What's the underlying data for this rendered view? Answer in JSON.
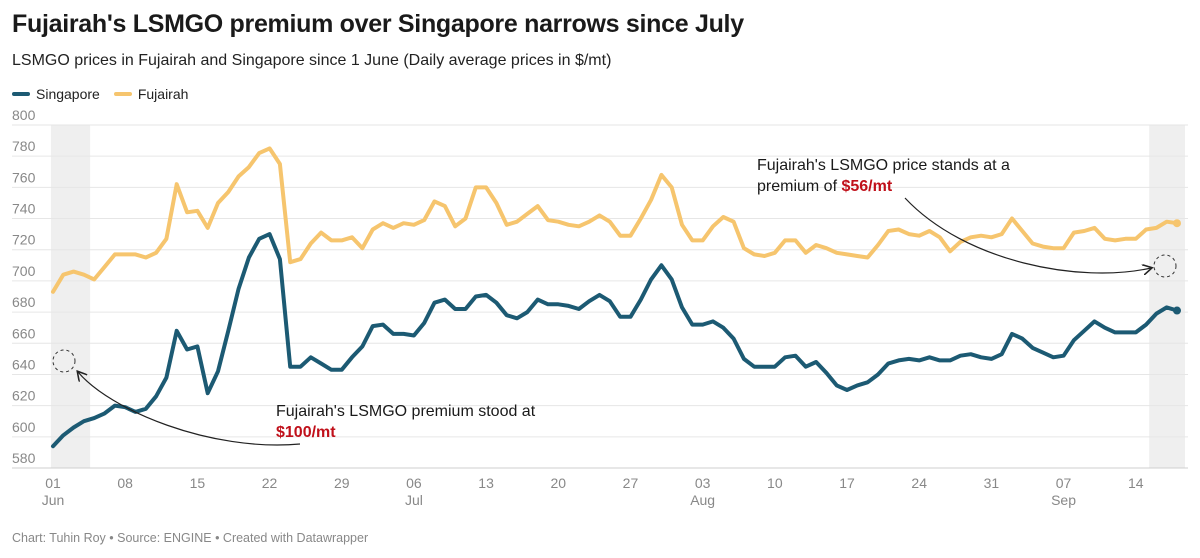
{
  "title": "Fujairah's LSMGO premium over Singapore narrows since July",
  "subtitle": "LSMGO prices in Fujairah and Singapore since 1 June (Daily average prices in $/mt)",
  "footer": "Chart: Tuhin Roy • Source: ENGINE • Created with Datawrapper",
  "annotations": {
    "start_text": "Fujairah's LSMGO premium stood at",
    "start_value": "$100/mt",
    "end_text_1": "Fujairah's LSMGO price stands at a",
    "end_text_2": "premium of ",
    "end_value": "$56/mt"
  },
  "colors": {
    "singapore": "#1c5a73",
    "fujairah": "#f6c56e",
    "highlight": "#c0101a",
    "shade": "#efefef",
    "grid": "#e6e6e6"
  },
  "chart_data": {
    "type": "line",
    "ylim": [
      580,
      800
    ],
    "y_ticks": [
      580,
      600,
      620,
      640,
      660,
      680,
      700,
      720,
      740,
      760,
      780,
      800
    ],
    "x_ticks": [
      {
        "day": 0,
        "label": "01",
        "month": "Jun"
      },
      {
        "day": 7,
        "label": "08",
        "month": ""
      },
      {
        "day": 14,
        "label": "15",
        "month": ""
      },
      {
        "day": 21,
        "label": "22",
        "month": ""
      },
      {
        "day": 28,
        "label": "29",
        "month": ""
      },
      {
        "day": 35,
        "label": "06",
        "month": "Jul"
      },
      {
        "day": 42,
        "label": "13",
        "month": ""
      },
      {
        "day": 49,
        "label": "20",
        "month": ""
      },
      {
        "day": 56,
        "label": "27",
        "month": ""
      },
      {
        "day": 63,
        "label": "03",
        "month": "Aug"
      },
      {
        "day": 70,
        "label": "10",
        "month": ""
      },
      {
        "day": 77,
        "label": "17",
        "month": ""
      },
      {
        "day": 84,
        "label": "24",
        "month": ""
      },
      {
        "day": 91,
        "label": "31",
        "month": ""
      },
      {
        "day": 98,
        "label": "07",
        "month": "Sep"
      },
      {
        "day": 105,
        "label": "14",
        "month": ""
      }
    ],
    "x_range": [
      0,
      109
    ],
    "series": [
      {
        "name": "Singapore",
        "points": [
          [
            0,
            594
          ],
          [
            1,
            601
          ],
          [
            2,
            606
          ],
          [
            3,
            610
          ],
          [
            4,
            612
          ],
          [
            5,
            615
          ],
          [
            6,
            620
          ],
          [
            7,
            619
          ],
          [
            8,
            616
          ],
          [
            9,
            618
          ],
          [
            10,
            626
          ],
          [
            11,
            638
          ],
          [
            12,
            668
          ],
          [
            13,
            656
          ],
          [
            14,
            658
          ],
          [
            15,
            628
          ],
          [
            16,
            642
          ],
          [
            17,
            668
          ],
          [
            18,
            695
          ],
          [
            19,
            715
          ],
          [
            20,
            727
          ],
          [
            21,
            730
          ],
          [
            22,
            714
          ],
          [
            23,
            645
          ],
          [
            24,
            645
          ],
          [
            25,
            651
          ],
          [
            26,
            647
          ],
          [
            27,
            643
          ],
          [
            28,
            643
          ],
          [
            29,
            651
          ],
          [
            30,
            658
          ],
          [
            31,
            671
          ],
          [
            32,
            672
          ],
          [
            33,
            666
          ],
          [
            34,
            666
          ],
          [
            35,
            665
          ],
          [
            36,
            673
          ],
          [
            37,
            686
          ],
          [
            38,
            688
          ],
          [
            39,
            682
          ],
          [
            40,
            682
          ],
          [
            41,
            690
          ],
          [
            42,
            691
          ],
          [
            43,
            686
          ],
          [
            44,
            678
          ],
          [
            45,
            676
          ],
          [
            46,
            680
          ],
          [
            47,
            688
          ],
          [
            48,
            685
          ],
          [
            49,
            685
          ],
          [
            50,
            684
          ],
          [
            51,
            682
          ],
          [
            52,
            687
          ],
          [
            53,
            691
          ],
          [
            54,
            687
          ],
          [
            55,
            677
          ],
          [
            56,
            677
          ],
          [
            57,
            688
          ],
          [
            58,
            701
          ],
          [
            59,
            710
          ],
          [
            60,
            701
          ],
          [
            61,
            683
          ],
          [
            62,
            672
          ],
          [
            63,
            672
          ],
          [
            64,
            674
          ],
          [
            65,
            670
          ],
          [
            66,
            663
          ],
          [
            67,
            650
          ],
          [
            68,
            645
          ],
          [
            69,
            645
          ],
          [
            70,
            645
          ],
          [
            71,
            651
          ],
          [
            72,
            652
          ],
          [
            73,
            645
          ],
          [
            74,
            648
          ],
          [
            75,
            641
          ],
          [
            76,
            633
          ],
          [
            77,
            630
          ],
          [
            78,
            633
          ],
          [
            79,
            635
          ],
          [
            80,
            640
          ],
          [
            81,
            647
          ],
          [
            82,
            649
          ],
          [
            83,
            650
          ],
          [
            84,
            649
          ],
          [
            85,
            651
          ],
          [
            86,
            649
          ],
          [
            87,
            649
          ],
          [
            88,
            652
          ],
          [
            89,
            653
          ],
          [
            90,
            651
          ],
          [
            91,
            650
          ],
          [
            92,
            653
          ],
          [
            93,
            666
          ],
          [
            94,
            663
          ],
          [
            95,
            657
          ],
          [
            96,
            654
          ],
          [
            97,
            651
          ],
          [
            98,
            652
          ],
          [
            99,
            662
          ],
          [
            100,
            668
          ],
          [
            101,
            674
          ],
          [
            102,
            670
          ],
          [
            103,
            667
          ],
          [
            104,
            667
          ],
          [
            105,
            667
          ],
          [
            106,
            672
          ],
          [
            107,
            679
          ],
          [
            108,
            683
          ],
          [
            109,
            681
          ]
        ]
      },
      {
        "name": "Fujairah",
        "points": [
          [
            0,
            693
          ],
          [
            1,
            704
          ],
          [
            2,
            706
          ],
          [
            3,
            704
          ],
          [
            4,
            701
          ],
          [
            5,
            709
          ],
          [
            6,
            717
          ],
          [
            7,
            717
          ],
          [
            8,
            717
          ],
          [
            9,
            715
          ],
          [
            10,
            718
          ],
          [
            11,
            727
          ],
          [
            12,
            762
          ],
          [
            13,
            744
          ],
          [
            14,
            745
          ],
          [
            15,
            734
          ],
          [
            16,
            750
          ],
          [
            17,
            757
          ],
          [
            18,
            767
          ],
          [
            19,
            773
          ],
          [
            20,
            782
          ],
          [
            21,
            785
          ],
          [
            22,
            775
          ],
          [
            23,
            712
          ],
          [
            24,
            714
          ],
          [
            25,
            724
          ],
          [
            26,
            731
          ],
          [
            27,
            726
          ],
          [
            28,
            726
          ],
          [
            29,
            728
          ],
          [
            30,
            721
          ],
          [
            31,
            733
          ],
          [
            32,
            737
          ],
          [
            33,
            734
          ],
          [
            34,
            737
          ],
          [
            35,
            736
          ],
          [
            36,
            739
          ],
          [
            37,
            751
          ],
          [
            38,
            748
          ],
          [
            39,
            735
          ],
          [
            40,
            740
          ],
          [
            41,
            760
          ],
          [
            42,
            760
          ],
          [
            43,
            750
          ],
          [
            44,
            736
          ],
          [
            45,
            738
          ],
          [
            46,
            743
          ],
          [
            47,
            748
          ],
          [
            48,
            739
          ],
          [
            49,
            738
          ],
          [
            50,
            736
          ],
          [
            51,
            735
          ],
          [
            52,
            738
          ],
          [
            53,
            742
          ],
          [
            54,
            738
          ],
          [
            55,
            729
          ],
          [
            56,
            729
          ],
          [
            57,
            740
          ],
          [
            58,
            752
          ],
          [
            59,
            768
          ],
          [
            60,
            760
          ],
          [
            61,
            736
          ],
          [
            62,
            726
          ],
          [
            63,
            726
          ],
          [
            64,
            735
          ],
          [
            65,
            741
          ],
          [
            66,
            738
          ],
          [
            67,
            721
          ],
          [
            68,
            717
          ],
          [
            69,
            716
          ],
          [
            70,
            718
          ],
          [
            71,
            726
          ],
          [
            72,
            726
          ],
          [
            73,
            718
          ],
          [
            74,
            723
          ],
          [
            75,
            721
          ],
          [
            76,
            718
          ],
          [
            77,
            717
          ],
          [
            78,
            716
          ],
          [
            79,
            715
          ],
          [
            80,
            723
          ],
          [
            81,
            732
          ],
          [
            82,
            733
          ],
          [
            83,
            730
          ],
          [
            84,
            729
          ],
          [
            85,
            732
          ],
          [
            86,
            728
          ],
          [
            87,
            719
          ],
          [
            88,
            725
          ],
          [
            89,
            728
          ],
          [
            90,
            729
          ],
          [
            91,
            728
          ],
          [
            92,
            730
          ],
          [
            93,
            740
          ],
          [
            94,
            732
          ],
          [
            95,
            724
          ],
          [
            96,
            722
          ],
          [
            97,
            721
          ],
          [
            98,
            721
          ],
          [
            99,
            731
          ],
          [
            100,
            732
          ],
          [
            101,
            734
          ],
          [
            102,
            727
          ],
          [
            103,
            726
          ],
          [
            104,
            727
          ],
          [
            105,
            727
          ],
          [
            106,
            733
          ],
          [
            107,
            734
          ],
          [
            108,
            738
          ],
          [
            109,
            737
          ]
        ]
      }
    ]
  }
}
